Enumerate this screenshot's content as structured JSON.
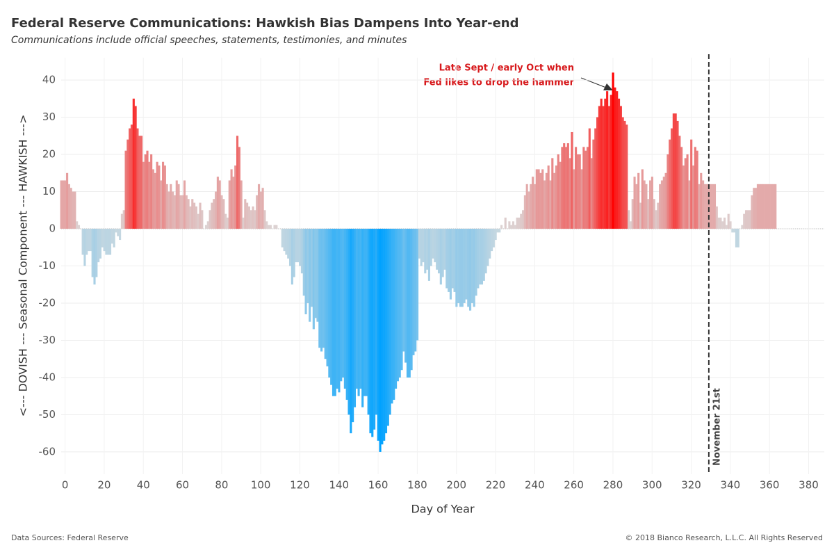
{
  "chart_data": {
    "type": "bar",
    "title": "Federal Reserve Communications: Hawkish Bias Dampens Into Year-end",
    "subtitle": "Communications include official speeches, statements, testimonies, and minutes",
    "x_label": "Day of Year",
    "y_label": "<--- DOVISH --- Seasonal Component --- HAWKISH --->",
    "source": "Data Sources: Federal Reserve",
    "copyright": "© 2018 Bianco Research, L.L.C. All Rights Reserved",
    "annotation": [
      "Late Sept / early Oct when",
      "Fed likes to drop the hammer"
    ],
    "vline": {
      "x": 329,
      "label": "November 21st"
    },
    "colors": {
      "positive": "#ff0000",
      "negative": "#00a2ff",
      "neutral": "#dcd4d4",
      "neutral_negative": "#c8d8e0"
    },
    "xlim": [
      -2,
      388
    ],
    "xticks": [
      0,
      20,
      40,
      60,
      80,
      100,
      120,
      140,
      160,
      180,
      200,
      220,
      240,
      260,
      280,
      300,
      320,
      340,
      360,
      380
    ],
    "ylim": [
      -66,
      46
    ],
    "yticks": [
      -60,
      -50,
      -40,
      -30,
      -20,
      -10,
      0,
      10,
      20,
      30,
      40
    ],
    "grid": true,
    "x": [
      -2,
      -1,
      0,
      1,
      2,
      3,
      4,
      5,
      6,
      7,
      8,
      9,
      10,
      11,
      12,
      13,
      14,
      15,
      16,
      17,
      18,
      19,
      20,
      21,
      22,
      23,
      24,
      25,
      26,
      27,
      28,
      29,
      30,
      31,
      32,
      33,
      34,
      35,
      36,
      37,
      38,
      39,
      40,
      41,
      42,
      43,
      44,
      45,
      46,
      47,
      48,
      49,
      50,
      51,
      52,
      53,
      54,
      55,
      56,
      57,
      58,
      59,
      60,
      61,
      62,
      63,
      64,
      65,
      66,
      67,
      68,
      69,
      70,
      71,
      72,
      73,
      74,
      75,
      76,
      77,
      78,
      79,
      80,
      81,
      82,
      83,
      84,
      85,
      86,
      87,
      88,
      89,
      90,
      91,
      92,
      93,
      94,
      95,
      96,
      97,
      98,
      99,
      100,
      101,
      102,
      103,
      104,
      105,
      106,
      107,
      108,
      109,
      110,
      111,
      112,
      113,
      114,
      115,
      116,
      117,
      118,
      119,
      120,
      121,
      122,
      123,
      124,
      125,
      126,
      127,
      128,
      129,
      130,
      131,
      132,
      133,
      134,
      135,
      136,
      137,
      138,
      139,
      140,
      141,
      142,
      143,
      144,
      145,
      146,
      147,
      148,
      149,
      150,
      151,
      152,
      153,
      154,
      155,
      156,
      157,
      158,
      159,
      160,
      161,
      162,
      163,
      164,
      165,
      166,
      167,
      168,
      169,
      170,
      171,
      172,
      173,
      174,
      175,
      176,
      177,
      178,
      179,
      180,
      181,
      182,
      183,
      184,
      185,
      186,
      187,
      188,
      189,
      190,
      191,
      192,
      193,
      194,
      195,
      196,
      197,
      198,
      199,
      200,
      201,
      202,
      203,
      204,
      205,
      206,
      207,
      208,
      209,
      210,
      211,
      212,
      213,
      214,
      215,
      216,
      217,
      218,
      219,
      220,
      221,
      222,
      223,
      224,
      225,
      226,
      227,
      228,
      229,
      230,
      231,
      232,
      233,
      234,
      235,
      236,
      237,
      238,
      239,
      240,
      241,
      242,
      243,
      244,
      245,
      246,
      247,
      248,
      249,
      250,
      251,
      252,
      253,
      254,
      255,
      256,
      257,
      258,
      259,
      260,
      261,
      262,
      263,
      264,
      265,
      266,
      267,
      268,
      269,
      270,
      271,
      272,
      273,
      274,
      275,
      276,
      277,
      278,
      279,
      280,
      281,
      282,
      283,
      284,
      285,
      286,
      287,
      288,
      289,
      290,
      291,
      292,
      293,
      294,
      295,
      296,
      297,
      298,
      299,
      300,
      301,
      302,
      303,
      304,
      305,
      306,
      307,
      308,
      309,
      310,
      311,
      312,
      313,
      314,
      315,
      316,
      317,
      318,
      319,
      320,
      321,
      322,
      323,
      324,
      325,
      326,
      327,
      328,
      329,
      330,
      331,
      332,
      333,
      334,
      335,
      336,
      337,
      338,
      339,
      340,
      341,
      342,
      343,
      344,
      345,
      346,
      347,
      348,
      349,
      350,
      351,
      352,
      353,
      354,
      355,
      356,
      357,
      358,
      359,
      360,
      361,
      362,
      363
    ],
    "values": [
      13,
      13,
      13,
      15,
      12,
      11,
      10,
      10,
      2,
      1,
      0,
      -7,
      -10,
      -7,
      -6,
      -6,
      -13,
      -15,
      -13,
      -9,
      -8,
      -5,
      -6,
      -7,
      -7,
      -7,
      -4,
      -5,
      -1,
      -2,
      -3,
      4,
      5,
      21,
      24,
      27,
      28,
      35,
      33,
      27,
      25,
      25,
      18,
      20,
      21,
      18,
      20,
      16,
      15,
      18,
      17,
      13,
      18,
      17,
      12,
      10,
      12,
      10,
      9,
      13,
      12,
      9,
      9,
      13,
      9,
      8,
      6,
      8,
      7,
      6,
      4,
      7,
      5,
      0,
      1,
      2,
      5,
      7,
      8,
      10,
      14,
      13,
      9,
      8,
      4,
      3,
      13,
      16,
      14,
      17,
      25,
      22,
      13,
      3,
      8,
      7,
      6,
      5,
      6,
      5,
      9,
      12,
      10,
      11,
      5,
      2,
      1,
      1,
      0,
      1,
      1,
      0,
      0,
      -5,
      -6,
      -7,
      -8,
      -10,
      -15,
      -13,
      -9,
      -9,
      -10,
      -12,
      -18,
      -23,
      -20,
      -25,
      -21,
      -27,
      -24,
      -25,
      -32,
      -33,
      -32,
      -35,
      -37,
      -40,
      -42,
      -45,
      -45,
      -43,
      -44,
      -41,
      -40,
      -43,
      -46,
      -50,
      -55,
      -52,
      -48,
      -43,
      -45,
      -43,
      -48,
      -45,
      -45,
      -50,
      -55,
      -56,
      -54,
      -50,
      -57,
      -60,
      -58,
      -57,
      -55,
      -53,
      -50,
      -47,
      -46,
      -43,
      -41,
      -40,
      -38,
      -33,
      -36,
      -40,
      -40,
      -38,
      -34,
      -33,
      -30,
      -8,
      -10,
      -9,
      -12,
      -11,
      -14,
      -10,
      -8,
      -9,
      -11,
      -12,
      -15,
      -13,
      -11,
      -16,
      -17,
      -19,
      -16,
      -17,
      -21,
      -20,
      -21,
      -21,
      -20,
      -19,
      -21,
      -22,
      -20,
      -21,
      -18,
      -16,
      -15,
      -15,
      -14,
      -12,
      -10,
      -8,
      -6,
      -5,
      -3,
      -1,
      -1,
      1,
      0,
      3,
      0,
      2,
      1,
      2,
      1,
      3,
      3,
      4,
      5,
      9,
      12,
      10,
      12,
      14,
      12,
      16,
      16,
      15,
      16,
      13,
      15,
      17,
      13,
      19,
      15,
      17,
      20,
      18,
      22,
      23,
      22,
      23,
      19,
      26,
      16,
      22,
      20,
      20,
      16,
      22,
      21,
      22,
      27,
      19,
      24,
      27,
      30,
      33,
      35,
      33,
      35,
      37,
      33,
      36,
      42,
      38,
      37,
      35,
      33,
      30,
      29,
      28,
      5,
      2,
      8,
      14,
      12,
      15,
      7,
      16,
      13,
      12,
      8,
      13,
      14,
      8,
      5,
      7,
      12,
      13,
      14,
      15,
      20,
      24,
      27,
      31,
      31,
      29,
      25,
      22,
      17,
      19,
      20,
      13,
      24,
      17,
      22,
      21,
      12,
      15,
      13,
      12,
      12,
      12,
      12,
      12,
      12,
      6,
      3,
      3,
      2,
      3,
      1,
      4,
      2,
      -1,
      -1,
      -5,
      -5,
      0,
      1,
      4,
      5,
      5,
      5,
      9,
      11,
      11,
      12,
      12,
      12,
      12,
      12,
      12,
      12,
      12,
      12,
      12
    ]
  }
}
